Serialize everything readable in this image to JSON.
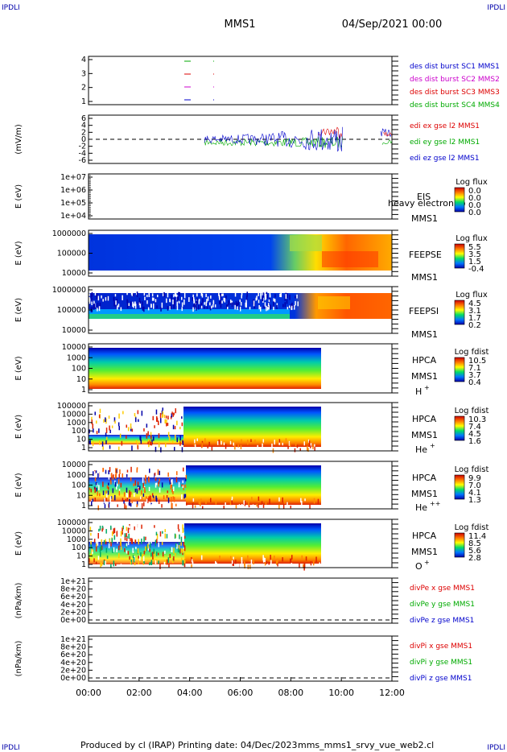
{
  "header": {
    "corner_label": "IPDLI",
    "mission": "MMS1",
    "datetime": "04/Sep/2021 00:00"
  },
  "footer": {
    "produced_by": "Produced by cl (IRAP)",
    "printing_date": "Printing date: 04/Dec/2023",
    "script": "mms_mms1_srvy_vue_web2.cl"
  },
  "chart_data": [
    {
      "type": "line",
      "panel": "burst",
      "yticks": [
        "4",
        "3",
        "2",
        "1"
      ],
      "legend": [
        {
          "name": "des dist burst SC1 MMS1",
          "color": "#0000cc"
        },
        {
          "name": "des dist burst SC2 MMS2",
          "color": "#cc00cc"
        },
        {
          "name": "des dist burst SC3 MMS3",
          "color": "#dd0000"
        },
        {
          "name": "des dist burst SC4 MMS4",
          "color": "#00aa00"
        }
      ]
    },
    {
      "type": "line",
      "panel": "edi",
      "ylabel": "(mV/m)",
      "yticks": [
        "6",
        "4",
        "2",
        "0",
        "-2",
        "-4",
        "-6"
      ],
      "legend": [
        {
          "name": "edi ex gse l2 MMS1",
          "color": "#dd0000"
        },
        {
          "name": "edi ey gse l2 MMS1",
          "color": "#00aa00"
        },
        {
          "name": "edi ez gse l2 MMS1",
          "color": "#0000cc"
        }
      ]
    },
    {
      "type": "heatmap",
      "panel": "eis",
      "ylabel": "E (eV)",
      "yticks": [
        "1e+07",
        "1e+06",
        "1e+05",
        "1e+04"
      ],
      "instrument": "EIS",
      "spacecraft": "MMS1",
      "overlay_text": "heavy electron to",
      "colorbar_title": "Log flux",
      "colorbar_ticks": [
        "0.0",
        "0.0",
        "0.0",
        "0.0"
      ]
    },
    {
      "type": "heatmap",
      "panel": "feepse",
      "ylabel": "E (eV)",
      "yticks": [
        "1000000",
        "100000",
        "10000"
      ],
      "instrument": "FEEPSE",
      "spacecraft": "MMS1",
      "colorbar_title": "Log flux",
      "colorbar_ticks": [
        "5.5",
        "3.5",
        "1.5",
        "-0.4"
      ]
    },
    {
      "type": "heatmap",
      "panel": "feepsi",
      "ylabel": "E (eV)",
      "yticks": [
        "1000000",
        "100000",
        "10000"
      ],
      "instrument": "FEEPSI",
      "spacecraft": "MMS1",
      "colorbar_title": "Log flux",
      "colorbar_ticks": [
        "4.5",
        "3.1",
        "1.7",
        "0.2"
      ]
    },
    {
      "type": "heatmap",
      "panel": "hpca-h",
      "ylabel": "E (eV)",
      "yticks": [
        "10000",
        "1000",
        "100",
        "10",
        "1"
      ],
      "instrument": "HPCA",
      "spacecraft": "MMS1",
      "species": "H",
      "species_sup": "+",
      "colorbar_title": "Log fdist",
      "colorbar_ticks": [
        "10.5",
        "7.1",
        "3.7",
        "0.4"
      ]
    },
    {
      "type": "heatmap",
      "panel": "hpca-he",
      "ylabel": "E (eV)",
      "yticks": [
        "100000",
        "10000",
        "1000",
        "100",
        "10",
        "1"
      ],
      "instrument": "HPCA",
      "spacecraft": "MMS1",
      "species": "He",
      "species_sup": "+",
      "colorbar_title": "Log fdist",
      "colorbar_ticks": [
        "10.3",
        "7.4",
        "4.5",
        "1.6"
      ]
    },
    {
      "type": "heatmap",
      "panel": "hpca-hepp",
      "ylabel": "E (eV)",
      "yticks": [
        "10000",
        "1000",
        "100",
        "10",
        "1"
      ],
      "instrument": "HPCA",
      "spacecraft": "MMS1",
      "species": "He",
      "species_sup": "++",
      "colorbar_title": "Log fdist",
      "colorbar_ticks": [
        "9.9",
        "7.0",
        "4.1",
        "1.3"
      ]
    },
    {
      "type": "heatmap",
      "panel": "hpca-o",
      "ylabel": "E (eV)",
      "yticks": [
        "100000",
        "10000",
        "1000",
        "100",
        "10",
        "1"
      ],
      "instrument": "HPCA",
      "spacecraft": "MMS1",
      "species": "O",
      "species_sup": "+",
      "colorbar_title": "Log fdist",
      "colorbar_ticks": [
        "11.4",
        "8.5",
        "5.6",
        "2.8"
      ]
    },
    {
      "type": "line",
      "panel": "divpe",
      "ylabel": "(nPa/km)",
      "yticks": [
        "1e+21",
        "8e+20",
        "6e+20",
        "4e+20",
        "2e+20",
        "0e+00"
      ],
      "legend": [
        {
          "name": "divPe x gse MMS1",
          "color": "#dd0000"
        },
        {
          "name": "divPe y gse MMS1",
          "color": "#00aa00"
        },
        {
          "name": "divPe z gse MMS1",
          "color": "#0000cc"
        }
      ]
    },
    {
      "type": "line",
      "panel": "divpi",
      "ylabel": "(nPa/km)",
      "yticks": [
        "1e+21",
        "8e+20",
        "6e+20",
        "4e+20",
        "2e+20",
        "0e+00"
      ],
      "legend": [
        {
          "name": "divPi x gse MMS1",
          "color": "#dd0000"
        },
        {
          "name": "divPi y gse MMS1",
          "color": "#00aa00"
        },
        {
          "name": "divPi z gse MMS1",
          "color": "#0000cc"
        }
      ],
      "xticks": [
        "00:00",
        "02:00",
        "04:00",
        "06:00",
        "08:00",
        "10:00",
        "12:00"
      ]
    }
  ]
}
